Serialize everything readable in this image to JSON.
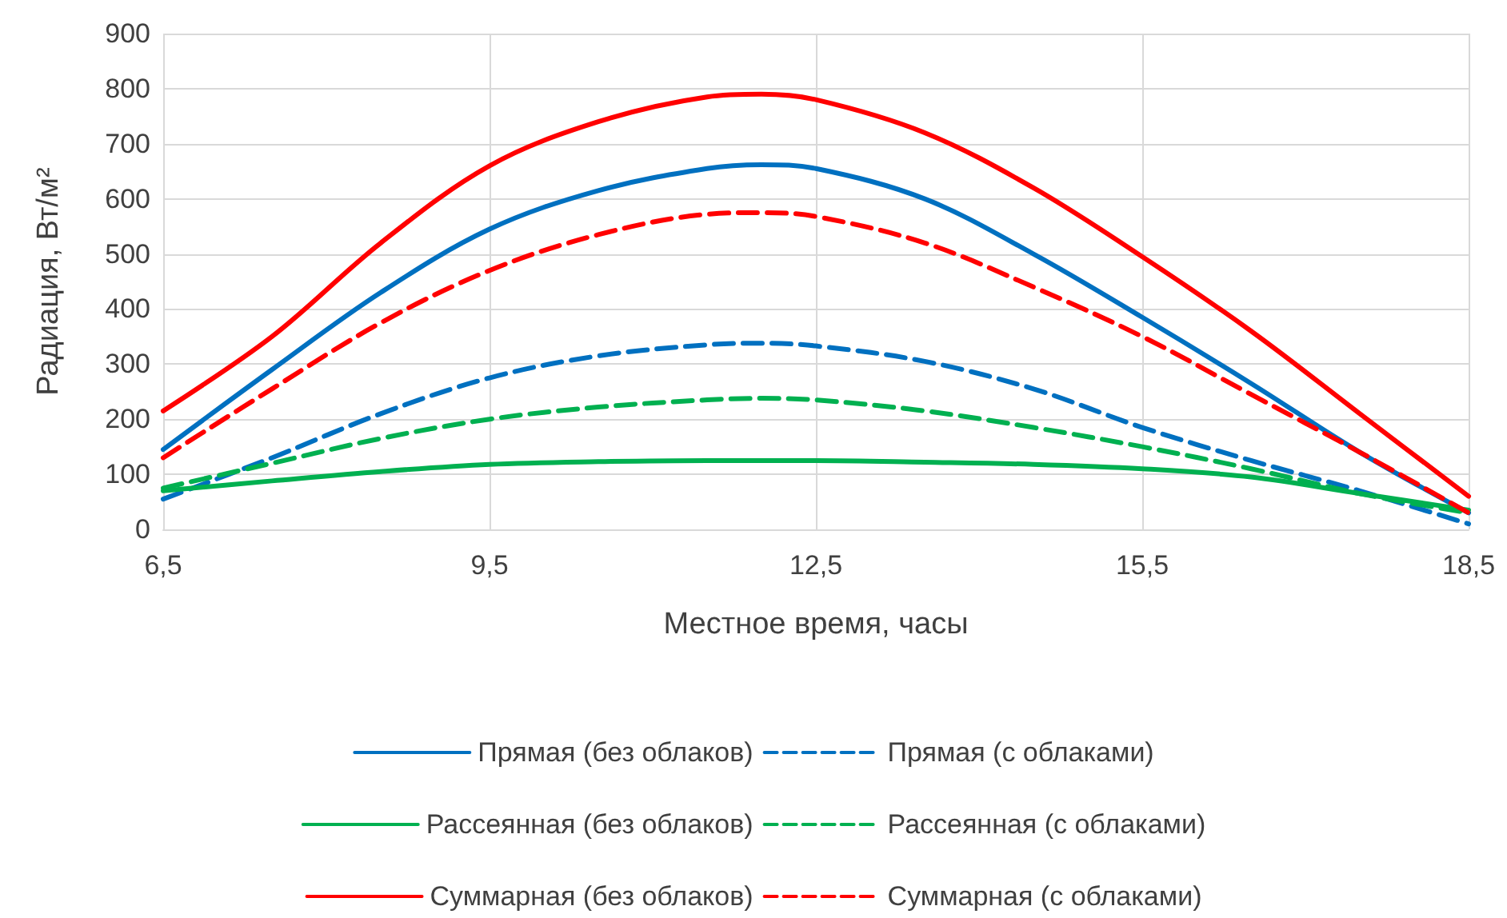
{
  "chart_data": {
    "type": "line",
    "xlabel": "Местное время, часы",
    "ylabel": "Радиация, Вт/м²",
    "x": [
      6.5,
      7.5,
      8.5,
      9.5,
      10.5,
      11.5,
      12,
      12.5,
      13.5,
      14.5,
      15.5,
      16.5,
      17.5,
      18.5
    ],
    "series": [
      {
        "name": "Прямая (без облаков)",
        "color": "#0070c0",
        "line_style": "solid",
        "values": [
          145,
          290,
          430,
          545,
          615,
          655,
          662,
          655,
          600,
          500,
          385,
          265,
          140,
          30
        ]
      },
      {
        "name": "Прямая (с облаками)",
        "color": "#0070c0",
        "line_style": "dashed",
        "values": [
          55,
          130,
          210,
          275,
          315,
          335,
          338,
          333,
          305,
          255,
          185,
          125,
          70,
          10
        ]
      },
      {
        "name": "Рассеянная (без облаков)",
        "color": "#00b050",
        "line_style": "solid",
        "values": [
          70,
          88,
          105,
          118,
          123,
          125,
          125,
          125,
          122,
          118,
          110,
          95,
          65,
          35
        ]
      },
      {
        "name": "Рассеянная (с облаками)",
        "color": "#00b050",
        "line_style": "dashed",
        "values": [
          75,
          120,
          165,
          200,
          222,
          235,
          238,
          235,
          215,
          185,
          150,
          110,
          65,
          30
        ]
      },
      {
        "name": "Суммарная (без облаков)",
        "color": "#ff0000",
        "line_style": "solid",
        "values": [
          215,
          350,
          520,
          660,
          740,
          785,
          790,
          780,
          720,
          620,
          495,
          360,
          210,
          60
        ]
      },
      {
        "name": "Суммарная (с облаками)",
        "color": "#ff0000",
        "line_style": "dashed",
        "values": [
          130,
          255,
          375,
          470,
          535,
          572,
          575,
          568,
          520,
          440,
          350,
          245,
          140,
          30
        ]
      }
    ],
    "xlim": [
      6.5,
      18.5
    ],
    "xticks": [
      {
        "value": 6.5,
        "label": "6,5"
      },
      {
        "value": 9.5,
        "label": "9,5"
      },
      {
        "value": 12.5,
        "label": "12,5"
      },
      {
        "value": 15.5,
        "label": "15,5"
      },
      {
        "value": 18.5,
        "label": "18,5"
      }
    ],
    "ylim": [
      0,
      900
    ],
    "yticks": [
      0,
      100,
      200,
      300,
      400,
      500,
      600,
      700,
      800,
      900
    ],
    "grid": true,
    "legend": "bottom",
    "marker": "none"
  }
}
